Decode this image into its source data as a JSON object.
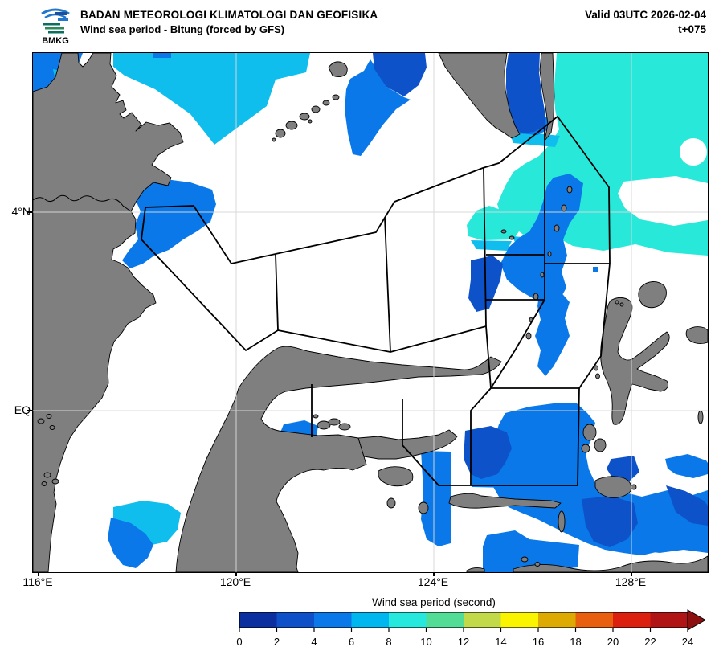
{
  "header": {
    "agency": "BADAN METEOROLOGI KLIMATOLOGI DAN GEOFISIKA",
    "product": "Wind sea period - Bitung (forced by GFS)",
    "valid": "Valid 03UTC 2026-02-04",
    "tstep": "t+075",
    "logo_text": "BMKG"
  },
  "map": {
    "x_labels": [
      "116°E",
      "120°E",
      "124°E",
      "128°E"
    ],
    "y_labels": [
      "4°N",
      "EQ"
    ],
    "region": "Celebes Sea / Maluku Sea around Bitung, Sulawesi"
  },
  "colorbar": {
    "title": "Wind sea period (second)",
    "ticks": [
      "0",
      "2",
      "4",
      "6",
      "8",
      "10",
      "12",
      "14",
      "16",
      "18",
      "20",
      "22",
      "24"
    ],
    "segment_colors": [
      "#0b2f9e",
      "#0e50c8",
      "#0a78e8",
      "#00b6ee",
      "#26e8dc",
      "#52dc96",
      "#c2da4a",
      "#faf400",
      "#dcaa00",
      "#e8600f",
      "#dc2010",
      "#b01414"
    ],
    "arrow_color": "#8c1010"
  },
  "colors": {
    "land": "#7f7f7f",
    "sea_default": "#ffffff",
    "period_2_4": "#0e52ca",
    "period_4_6": "#0a78e8",
    "period_6_8": "#10beee",
    "period_8_10": "#28e8da",
    "coastline": "#000000",
    "forecast_zone_line": "#000000",
    "gridline": "#d9d9d9"
  }
}
